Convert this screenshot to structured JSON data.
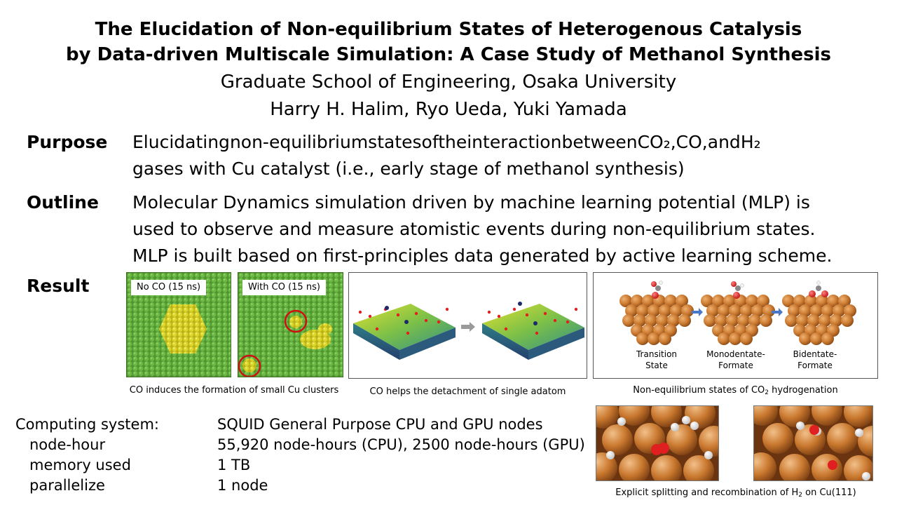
{
  "header": {
    "title_line1": "The Elucidation of Non-equilibrium States of Heterogenous Catalysis",
    "title_line2": "by Data-driven Multiscale Simulation: A Case Study of Methanol Synthesis",
    "affiliation": "Graduate School of Engineering, Osaka University",
    "authors": "Harry H. Halim, Ryo Ueda, Yuki Yamada"
  },
  "purpose": {
    "label": "Purpose",
    "line1_words": [
      "Elucidating",
      "non-equilibrium",
      "states",
      "of",
      "the",
      "interaction",
      "between",
      "CO₂,",
      "CO,",
      "and",
      "H₂"
    ],
    "line2": "gases with Cu catalyst (i.e., early stage of methanol synthesis)"
  },
  "outline": {
    "label": "Outline",
    "line1": "Molecular Dynamics simulation driven by machine learning potential (MLP) is",
    "line2": "used to observe and measure atomistic events during non-equilibrium states.",
    "line3": "MLP is built based on first-principles data generated by active learning scheme."
  },
  "result": {
    "label": "Result",
    "panel1_tag": "No CO (15 ns)",
    "panel2_tag": "With CO (15 ns)",
    "caption1": "CO induces the formation of small Cu clusters",
    "caption2": "CO helps the detachment of single adatom",
    "caption3_pre": "Non-equilibrium  states of CO",
    "caption3_sub": "2",
    "caption3_post": " hydrogenation",
    "steps": [
      {
        "line1": "Transition",
        "line2": "State"
      },
      {
        "line1": "Monodentate-",
        "line2": "Formate"
      },
      {
        "line1": "Bidentate-",
        "line2": "Formate"
      }
    ],
    "caption4_pre": "Explicit splitting and recombination of H",
    "caption4_sub": "2",
    "caption4_post": " on Cu(111)"
  },
  "computing": {
    "rows": [
      {
        "key": "Computing system:",
        "value": "SQUID General Purpose CPU and GPU nodes"
      },
      {
        "key": "node-hour",
        "value": "55,920 node-hours (CPU), 2500 node-hours (GPU)"
      },
      {
        "key": "memory used",
        "value": "1 TB"
      },
      {
        "key": "parallelize",
        "value": "1 node"
      }
    ]
  },
  "colors": {
    "cu_green": "#5fa83a",
    "cu_yellow": "#d8d820",
    "copper": "#c9782e",
    "oxygen": "#e02020",
    "highlight_ring": "#d01010",
    "arrow_blue": "#4a78c8",
    "arrow_gray": "#9a9a9a"
  }
}
